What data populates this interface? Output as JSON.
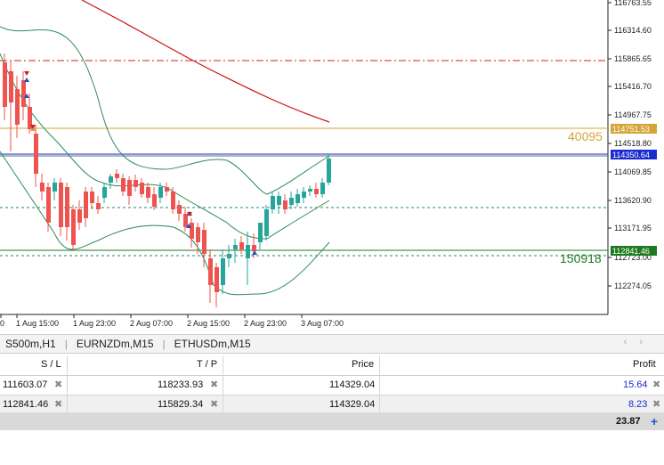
{
  "chart": {
    "price_axis": [
      "116763.55",
      "116314.60",
      "115865.65",
      "115416.70",
      "114967.75",
      "114518.80",
      "114069.85",
      "113620.90",
      "113171.95",
      "112723.00",
      "112274.05"
    ],
    "time_axis": [
      "0",
      "1 Aug 15:00",
      "1 Aug 23:00",
      "2 Aug 07:00",
      "2 Aug 15:00",
      "2 Aug 23:00",
      "3 Aug 07:00"
    ],
    "tags": {
      "tp_price": "114751.53",
      "bid_price": "114350.64",
      "sl_price": "112841.46"
    },
    "order_labels": {
      "tp_ticket": "40095",
      "sl_ticket": "150918"
    },
    "colors": {
      "bull": "#26a69a",
      "bear": "#ef5350",
      "ma": "#cc1111",
      "band": "#2e8b57",
      "tp": "#d4a437",
      "bid": "#1a2bd0",
      "sl": "#1e7a1e"
    }
  },
  "tabs": [
    "S500m,H1",
    "EURNZDm,M15",
    "ETHUSDm,M15"
  ],
  "table": {
    "headers": {
      "sl": "S / L",
      "tp": "T / P",
      "price": "Price",
      "profit": "Profit"
    },
    "rows": [
      {
        "sl": "111603.07",
        "tp": "118233.93",
        "price": "114329.04",
        "profit": "15.64"
      },
      {
        "sl": "112841.46",
        "tp": "115829.34",
        "price": "114329.04",
        "profit": "8.23"
      }
    ],
    "total": "23.87"
  }
}
